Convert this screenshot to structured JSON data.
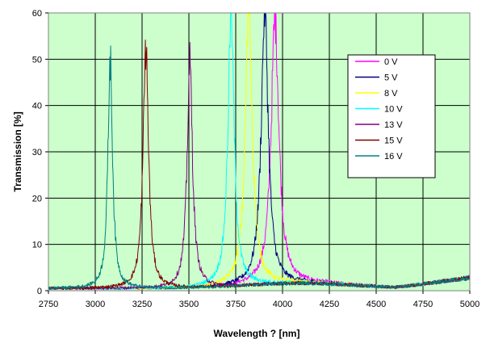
{
  "chart_data": {
    "type": "line",
    "title": "",
    "xlabel": "Wavelength ? [nm]",
    "ylabel": "Transmission [%]",
    "xlim": [
      2750,
      5000
    ],
    "ylim": [
      0,
      60
    ],
    "x_ticks": [
      "2750",
      "3000",
      "3250",
      "3500",
      "3750",
      "4000",
      "4250",
      "4500",
      "4750",
      "5000"
    ],
    "y_ticks": [
      "0",
      "10",
      "20",
      "30",
      "40",
      "50",
      "60"
    ],
    "grid": true,
    "legend_position": "right",
    "plot_background": "#ccffcc",
    "series": [
      {
        "name": "0 V",
        "color": "#ff00ff",
        "peak_x": 3960,
        "peak_y": 57.5,
        "fwhm": 50
      },
      {
        "name": "5 V",
        "color": "#000080",
        "peak_x": 3905,
        "peak_y": 59.5,
        "fwhm": 45
      },
      {
        "name": "8 V",
        "color": "#ffff00",
        "peak_x": 3820,
        "peak_y": 60.0,
        "fwhm": 45
      },
      {
        "name": "10 V",
        "color": "#00ffff",
        "peak_x": 3725,
        "peak_y": 58.5,
        "fwhm": 40
      },
      {
        "name": "13 V",
        "color": "#800080",
        "peak_x": 3505,
        "peak_y": 48.5,
        "fwhm": 35
      },
      {
        "name": "15 V",
        "color": "#800000",
        "peak_x": 3270,
        "peak_y": 52.0,
        "fwhm": 35
      },
      {
        "name": "16 V",
        "color": "#008080",
        "peak_x": 3080,
        "peak_y": 49.5,
        "fwhm": 30
      }
    ]
  }
}
